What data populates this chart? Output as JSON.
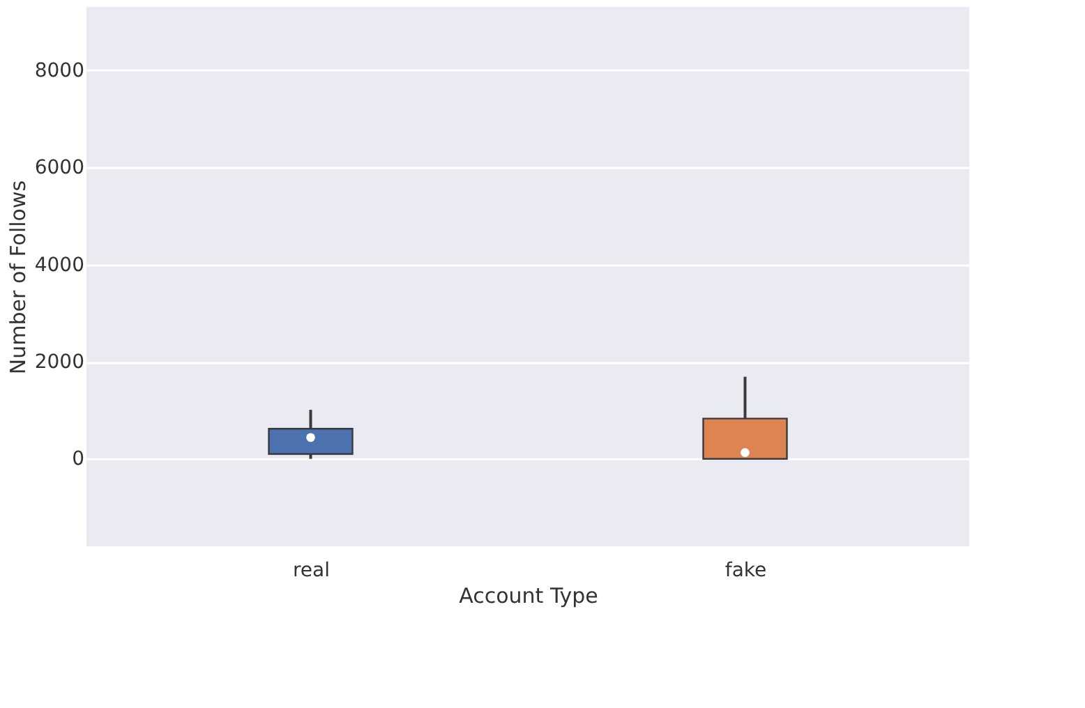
{
  "chart_data": {
    "type": "box",
    "xlabel": "Account Type",
    "ylabel": "Number of Follows",
    "categories": [
      "real",
      "fake"
    ],
    "colors": [
      "#4c72b0",
      "#dd8452"
    ],
    "boxes": [
      {
        "low": 0,
        "q1": 100,
        "median": 440,
        "q3": 620,
        "high": 1010
      },
      {
        "low": 0,
        "q1": 0,
        "median": 130,
        "q3": 830,
        "high": 1690
      }
    ],
    "ylim": [
      -1800,
      9300
    ],
    "yticks": [
      0,
      2000,
      4000,
      6000,
      8000
    ],
    "grid": "y"
  }
}
